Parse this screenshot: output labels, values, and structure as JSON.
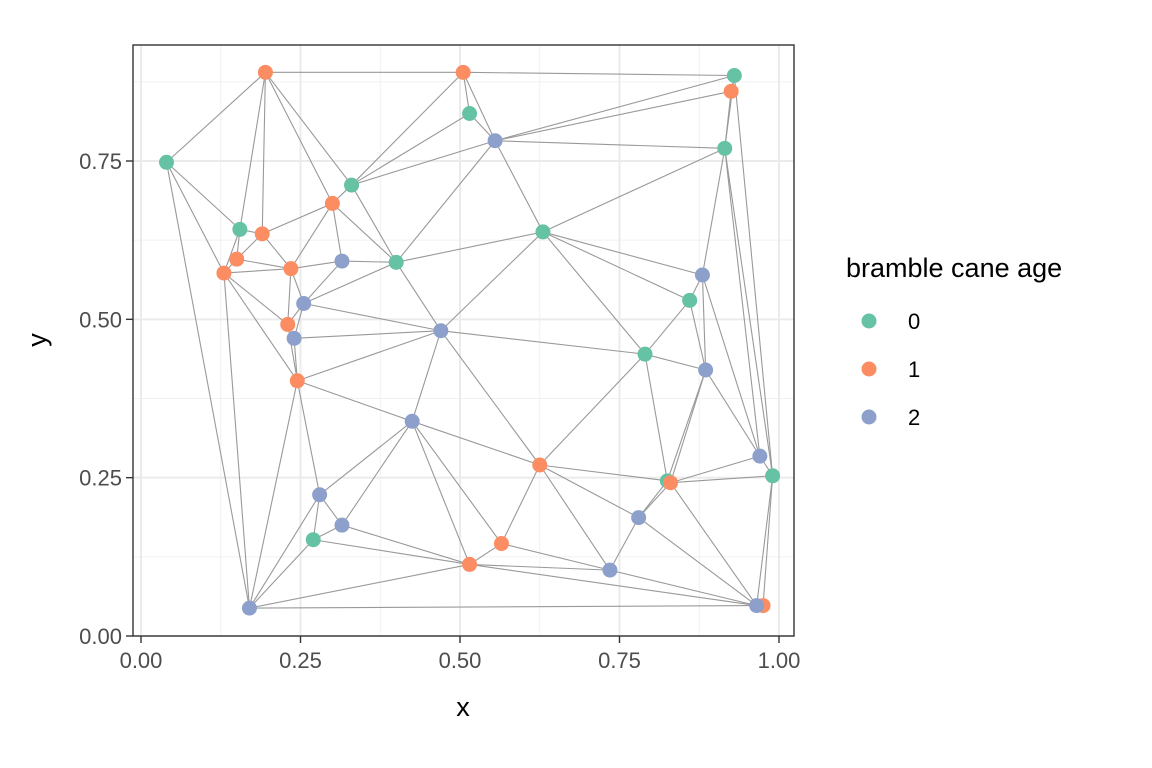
{
  "chart_data": {
    "type": "scatter",
    "title": "",
    "xlabel": "x",
    "ylabel": "y",
    "xlim": [
      0,
      1
    ],
    "ylim": [
      0,
      0.9
    ],
    "x_ticks": [
      {
        "value": 0,
        "label": "0.00"
      },
      {
        "value": 0.25,
        "label": "0.25"
      },
      {
        "value": 0.5,
        "label": "0.50"
      },
      {
        "value": 0.75,
        "label": "0.75"
      },
      {
        "value": 1,
        "label": "1.00"
      }
    ],
    "y_ticks": [
      {
        "value": 0,
        "label": "0.00"
      },
      {
        "value": 0.25,
        "label": "0.25"
      },
      {
        "value": 0.5,
        "label": "0.50"
      },
      {
        "value": 0.75,
        "label": "0.75"
      }
    ],
    "grid": true,
    "legend": {
      "title": "bramble cane age",
      "position": "right",
      "entries": [
        {
          "label": "0",
          "color": "#66c2a5"
        },
        {
          "label": "1",
          "color": "#fc8d62"
        },
        {
          "label": "2",
          "color": "#8da0cb"
        }
      ]
    },
    "edge_color": "#999999",
    "series": [
      {
        "name": "0",
        "color": "#66c2a5",
        "x": [
          0.04,
          0.155,
          0.33,
          0.515,
          0.4,
          0.63,
          0.93,
          0.915,
          0.86,
          0.79,
          0.825,
          0.99,
          0.27
        ],
        "y": [
          0.748,
          0.642,
          0.712,
          0.825,
          0.59,
          0.638,
          0.885,
          0.77,
          0.53,
          0.445,
          0.245,
          0.253,
          0.152
        ]
      },
      {
        "name": "1",
        "color": "#fc8d62",
        "x": [
          0.195,
          0.505,
          0.925,
          0.3,
          0.19,
          0.15,
          0.13,
          0.235,
          0.23,
          0.245,
          0.625,
          0.565,
          0.515,
          0.83,
          0.975
        ],
        "y": [
          0.89,
          0.89,
          0.86,
          0.683,
          0.635,
          0.595,
          0.573,
          0.58,
          0.492,
          0.403,
          0.27,
          0.146,
          0.113,
          0.242,
          0.048
        ]
      },
      {
        "name": "2",
        "color": "#8da0cb",
        "x": [
          0.555,
          0.315,
          0.255,
          0.24,
          0.47,
          0.425,
          0.28,
          0.315,
          0.17,
          0.735,
          0.78,
          0.88,
          0.885,
          0.97,
          0.965
        ],
        "y": [
          0.782,
          0.592,
          0.525,
          0.47,
          0.482,
          0.339,
          0.223,
          0.175,
          0.044,
          0.104,
          0.187,
          0.57,
          0.42,
          0.284,
          0.048
        ]
      }
    ]
  }
}
